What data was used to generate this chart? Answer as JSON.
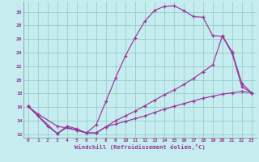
{
  "xlabel": "Windchill (Refroidissement éolien,°C)",
  "bg_color": "#c5edf0",
  "grid_color": "#99cccc",
  "line_color": "#993399",
  "xlim": [
    -0.5,
    23.5
  ],
  "ylim": [
    11.5,
    31.5
  ],
  "yticks": [
    12,
    14,
    16,
    18,
    20,
    22,
    24,
    26,
    28,
    30
  ],
  "xticks": [
    0,
    1,
    2,
    3,
    4,
    5,
    6,
    7,
    8,
    9,
    10,
    11,
    12,
    13,
    14,
    15,
    16,
    17,
    18,
    19,
    20,
    21,
    22,
    23
  ],
  "curve1_x": [
    0,
    1,
    2,
    3,
    4,
    5,
    6,
    7,
    8,
    9,
    10,
    11,
    12,
    13,
    14,
    15,
    16,
    17,
    18,
    19,
    20,
    21,
    22,
    23
  ],
  "curve1_y": [
    16.1,
    14.7,
    13.2,
    12.1,
    13.2,
    12.8,
    12.2,
    13.4,
    16.8,
    20.3,
    23.5,
    26.2,
    28.6,
    30.2,
    30.8,
    30.9,
    30.2,
    29.3,
    29.2,
    26.5,
    26.4,
    23.9,
    19.0,
    18.1
  ],
  "curve2_x": [
    0,
    1,
    3,
    5,
    6,
    7,
    8,
    9,
    10,
    11,
    12,
    13,
    14,
    15,
    16,
    17,
    18,
    19,
    20,
    21,
    22,
    23
  ],
  "curve2_y": [
    16.1,
    15.0,
    13.2,
    12.6,
    12.2,
    12.2,
    13.1,
    14.0,
    14.7,
    15.4,
    16.2,
    17.0,
    17.8,
    18.5,
    19.3,
    20.2,
    21.2,
    22.2,
    26.5,
    24.1,
    19.5,
    18.1
  ],
  "curve3_x": [
    0,
    3,
    4,
    5,
    6,
    7,
    8,
    9,
    10,
    11,
    12,
    13,
    14,
    15,
    16,
    17,
    18,
    19,
    20,
    21,
    22,
    23
  ],
  "curve3_y": [
    16.1,
    12.1,
    13.0,
    12.6,
    12.2,
    12.2,
    13.1,
    13.5,
    13.9,
    14.3,
    14.7,
    15.2,
    15.7,
    16.1,
    16.5,
    16.9,
    17.3,
    17.6,
    17.9,
    18.1,
    18.3,
    18.1
  ]
}
